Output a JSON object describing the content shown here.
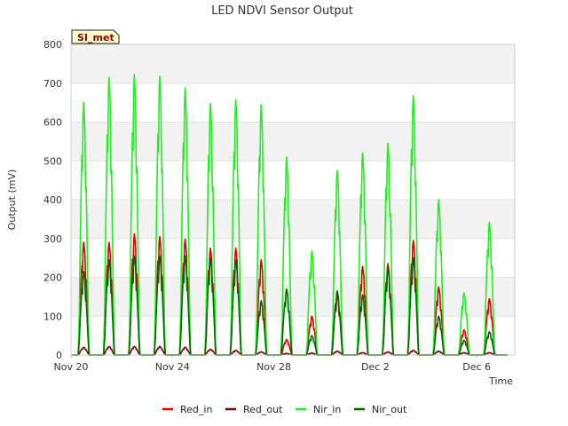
{
  "chart_data": {
    "type": "line",
    "title": "LED NDVI Sensor Output",
    "xlabel": "Time",
    "ylabel": "Output (mV)",
    "ylim": [
      0,
      800
    ],
    "yticks": [
      0,
      100,
      200,
      300,
      400,
      500,
      600,
      700,
      800
    ],
    "xlim": [
      "2023-11-20",
      "2023-12-07T12:00"
    ],
    "xticks": [
      {
        "date": "2023-11-20",
        "label": "Nov 20"
      },
      {
        "date": "2023-11-24",
        "label": "Nov 24"
      },
      {
        "date": "2023-11-28",
        "label": "Nov 28"
      },
      {
        "date": "2023-12-02",
        "label": "Dec 2"
      },
      {
        "date": "2023-12-06",
        "label": "Dec 6"
      }
    ],
    "grid": true,
    "legend_position": "bottom",
    "badge": "SI_met",
    "daily_peaks": {
      "dates": [
        "Nov 20",
        "Nov 21",
        "Nov 22",
        "Nov 23",
        "Nov 24",
        "Nov 25",
        "Nov 26",
        "Nov 27",
        "Nov 28",
        "Nov 29",
        "Nov 30",
        "Dec 1",
        "Dec 2",
        "Dec 3",
        "Dec 4",
        "Dec 5",
        "Dec 6"
      ],
      "peak_dates": [
        "2023-11-20T12:00",
        "2023-11-21T12:00",
        "2023-11-22T12:00",
        "2023-11-23T12:00",
        "2023-11-24T12:00",
        "2023-11-25T12:00",
        "2023-11-26T12:00",
        "2023-11-27T12:00",
        "2023-11-28T12:00",
        "2023-11-29T12:00",
        "2023-11-30T12:00",
        "2023-12-01T12:00",
        "2023-12-02T12:00",
        "2023-12-03T12:00",
        "2023-12-04T12:00",
        "2023-12-05T12:00",
        "2023-12-06T12:00"
      ]
    },
    "series": [
      {
        "name": "Red_in",
        "color": "#dd0000",
        "values": [
          290,
          290,
          312,
          305,
          298,
          275,
          275,
          245,
          40,
          100,
          155,
          228,
          235,
          295,
          175,
          65,
          145
        ]
      },
      {
        "name": "Red_out",
        "color": "#7a0000",
        "values": [
          20,
          22,
          22,
          22,
          20,
          15,
          12,
          8,
          4,
          5,
          10,
          6,
          8,
          12,
          10,
          6,
          6
        ]
      },
      {
        "name": "Nir_in",
        "color": "#22ee22",
        "values": [
          650,
          715,
          722,
          718,
          688,
          648,
          658,
          645,
          510,
          268,
          475,
          520,
          545,
          668,
          400,
          160,
          342
        ]
      },
      {
        "name": "Nir_out",
        "color": "#006600",
        "values": [
          215,
          245,
          255,
          255,
          255,
          250,
          245,
          140,
          170,
          50,
          165,
          155,
          225,
          250,
          100,
          38,
          60
        ]
      }
    ]
  }
}
